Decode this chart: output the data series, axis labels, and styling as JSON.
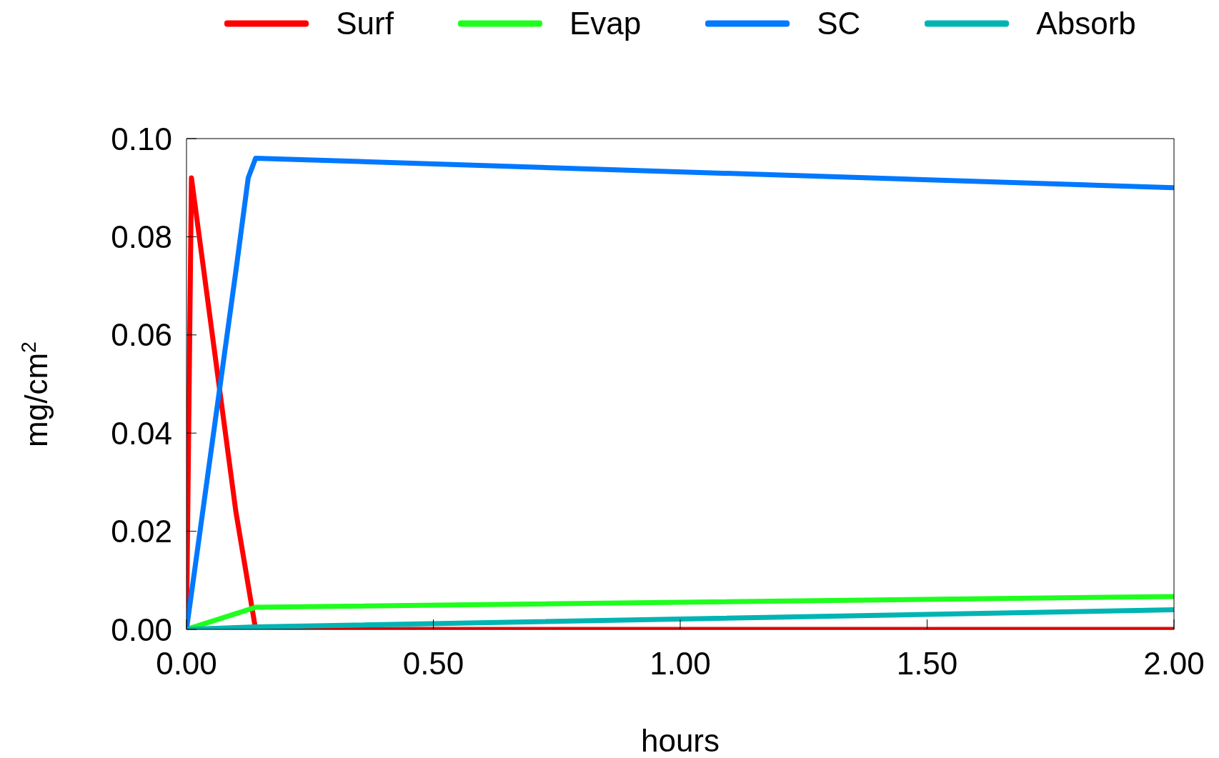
{
  "chart_data": {
    "type": "line",
    "xlabel": "hours",
    "ylabel": "mg/cm$^{2}$",
    "xlim": [
      0,
      2
    ],
    "xticks": [
      {
        "value": 0,
        "label": "0.00"
      },
      {
        "value": 0.5,
        "label": "0.50"
      },
      {
        "value": 1,
        "label": "1.00"
      },
      {
        "value": 1.5,
        "label": "1.50"
      },
      {
        "value": 2,
        "label": "2.00"
      }
    ],
    "ylim": [
      0,
      0.1
    ],
    "yticks": [
      {
        "value": 0,
        "label": "0.00"
      },
      {
        "value": 0.02,
        "label": "0.02"
      },
      {
        "value": 0.04,
        "label": "0.04"
      },
      {
        "value": 0.06,
        "label": "0.06"
      },
      {
        "value": 0.08,
        "label": "0.08"
      },
      {
        "value": 0.1,
        "label": "0.10"
      }
    ],
    "grid": false,
    "legend": "top",
    "marker": "none",
    "line_style": "solid",
    "series": [
      {
        "name": "Surf",
        "color": "#ff0000",
        "x": [
          0,
          0.01,
          0.1,
          0.14,
          2
        ],
        "values": [
          0,
          0.092,
          0.024,
          0,
          0
        ]
      },
      {
        "name": "Evap",
        "color": "#1eff1e",
        "x": [
          0,
          0.14,
          2
        ],
        "values": [
          0,
          0.0045,
          0.0067
        ]
      },
      {
        "name": "SC",
        "color": "#0078ff",
        "x": [
          0,
          0.1,
          0.125,
          0.14,
          2
        ],
        "values": [
          0,
          0.073,
          0.092,
          0.096,
          0.09
        ]
      },
      {
        "name": "Absorb",
        "color": "#00b4b4",
        "x": [
          0,
          0.14,
          2
        ],
        "values": [
          0,
          0.0005,
          0.004
        ]
      }
    ]
  }
}
